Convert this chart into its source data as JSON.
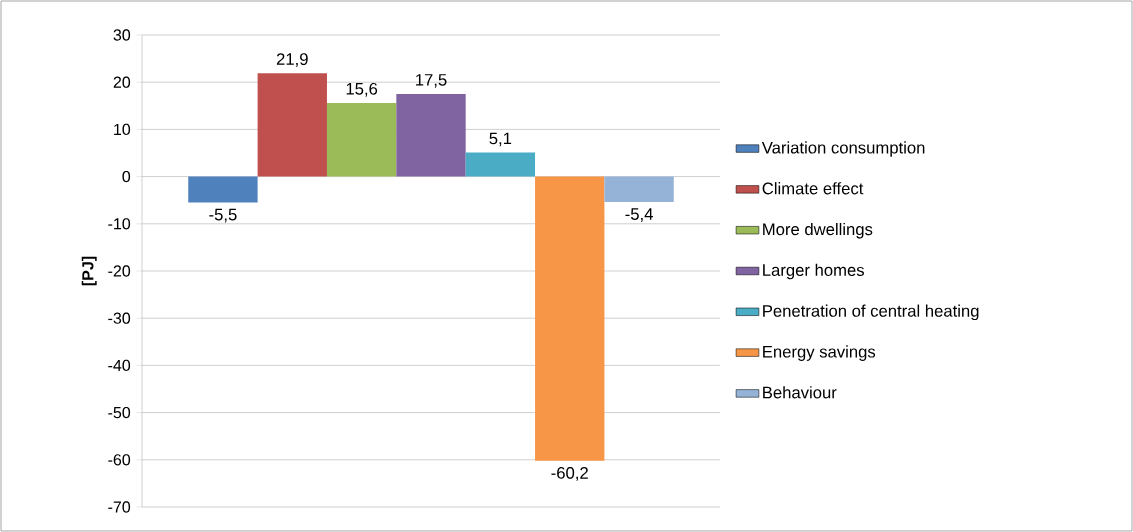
{
  "chart_data": {
    "type": "bar",
    "ylabel": "[PJ]",
    "categories": [
      null
    ],
    "series": [
      {
        "name": "Variation consumption",
        "color": "#4f81bd",
        "values": [
          -5.5
        ],
        "value_labels": [
          "-5,5"
        ]
      },
      {
        "name": "Climate effect",
        "color": "#c0504d",
        "values": [
          21.9
        ],
        "value_labels": [
          "21,9"
        ]
      },
      {
        "name": "More dwellings",
        "color": "#9bbb59",
        "values": [
          15.6
        ],
        "value_labels": [
          "15,6"
        ]
      },
      {
        "name": "Larger homes",
        "color": "#8064a2",
        "values": [
          17.5
        ],
        "value_labels": [
          "17,5"
        ]
      },
      {
        "name": "Penetration of central heating",
        "color": "#4bacc6",
        "values": [
          5.1
        ],
        "value_labels": [
          "5,1"
        ]
      },
      {
        "name": "Energy savings",
        "color": "#f79646",
        "values": [
          -60.2
        ],
        "value_labels": [
          "-60,2"
        ]
      },
      {
        "name": "Behaviour",
        "color": "#95b3d7",
        "values": [
          -5.4
        ],
        "value_labels": [
          "-5,4"
        ]
      }
    ],
    "ylim": [
      -70,
      30
    ],
    "yticks": [
      -70,
      -60,
      -50,
      -40,
      -30,
      -20,
      -10,
      0,
      10,
      20,
      30
    ],
    "grid": "y",
    "legend": "right"
  }
}
